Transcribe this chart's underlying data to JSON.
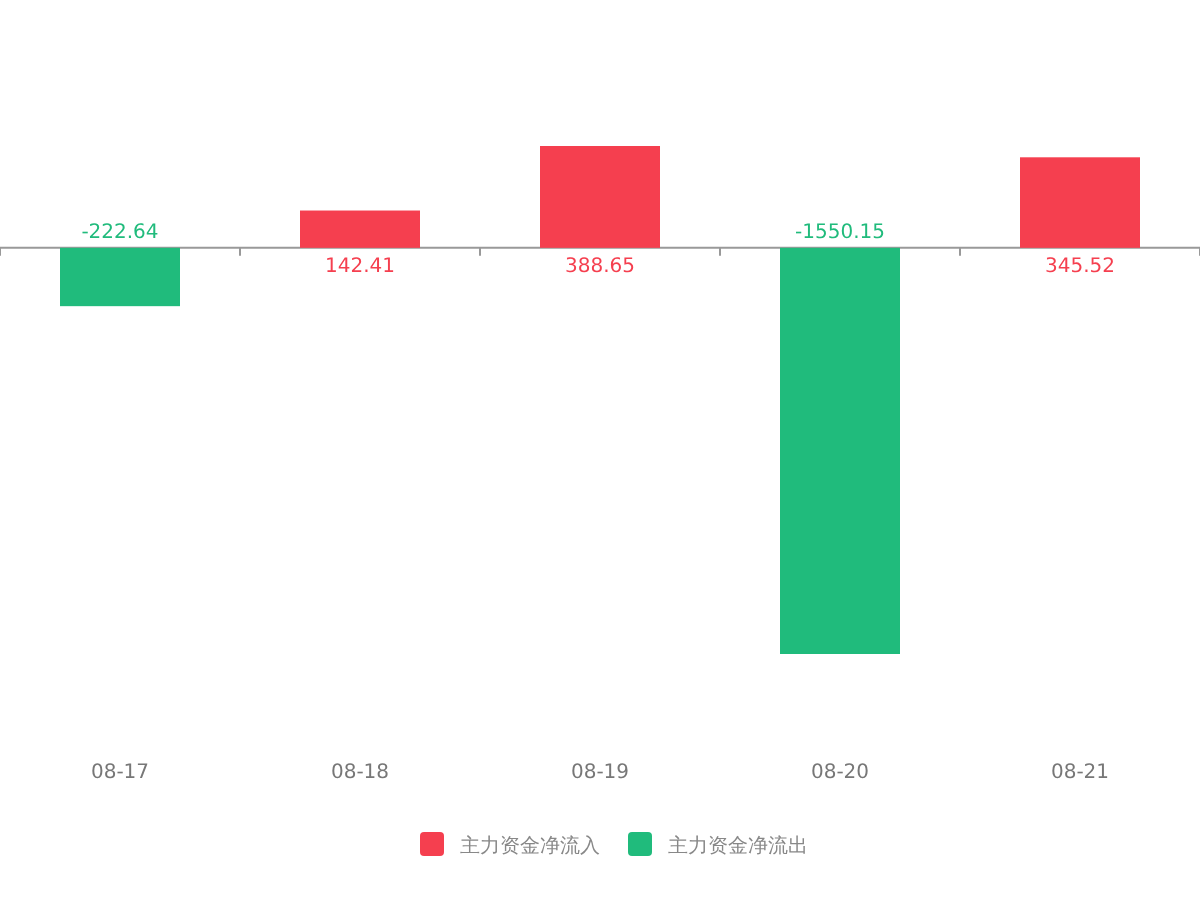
{
  "chart_data": {
    "type": "bar",
    "categories": [
      "08-17",
      "08-18",
      "08-19",
      "08-20",
      "08-21"
    ],
    "series": [
      {
        "name": "主力资金净流入",
        "color": "#f53f4f",
        "values": [
          null,
          142.41,
          388.65,
          null,
          345.52
        ]
      },
      {
        "name": "主力资金净流出",
        "color": "#20bb7c",
        "values": [
          -222.64,
          null,
          null,
          -1550.15,
          null
        ]
      }
    ],
    "data_labels": true,
    "legend": "bottom"
  }
}
